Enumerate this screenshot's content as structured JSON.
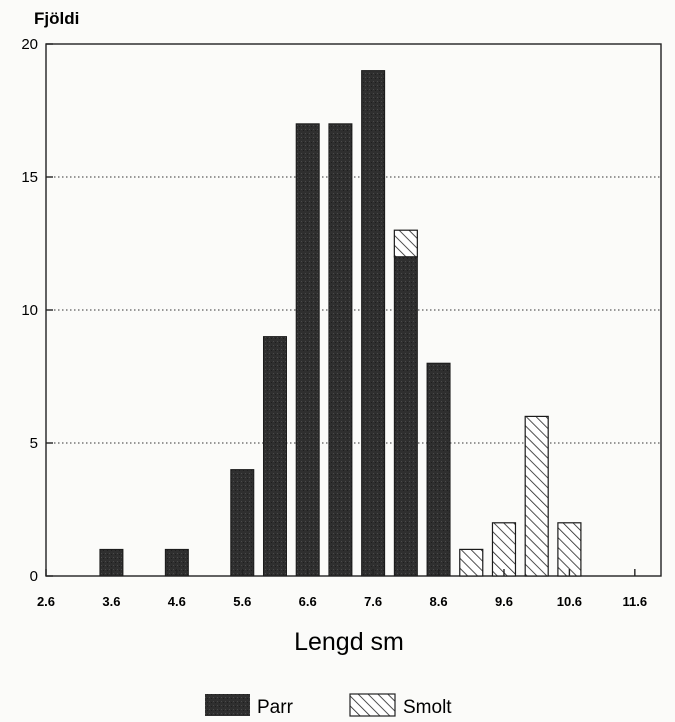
{
  "chart_data": {
    "type": "bar",
    "ylabel": "Fjöldi",
    "xlabel": "Lengd sm",
    "ylim": [
      0,
      20
    ],
    "yticks": [
      "0",
      "5",
      "10",
      "15",
      "20"
    ],
    "xticks": [
      "2.6",
      "3.6",
      "4.6",
      "5.6",
      "6.6",
      "7.6",
      "8.6",
      "9.6",
      "10.6",
      "11.6"
    ],
    "categories": [
      "3.6",
      "4.6",
      "5.6",
      "6.1",
      "6.6",
      "7.1",
      "7.6",
      "8.1",
      "8.6",
      "9.1",
      "9.6",
      "10.1",
      "10.6"
    ],
    "series": [
      {
        "name": "Parr",
        "values": [
          1,
          1,
          4,
          9,
          17,
          17,
          19,
          12,
          8,
          0,
          0,
          0,
          0
        ]
      },
      {
        "name": "Smolt",
        "values": [
          0,
          0,
          0,
          0,
          0,
          0,
          0,
          1,
          0,
          1,
          2,
          6,
          2
        ]
      }
    ],
    "grid": "horizontal dotted",
    "legend": "bottom-center",
    "colors": {
      "Parr": "#2e2e2e",
      "Smolt": "hatched"
    }
  }
}
